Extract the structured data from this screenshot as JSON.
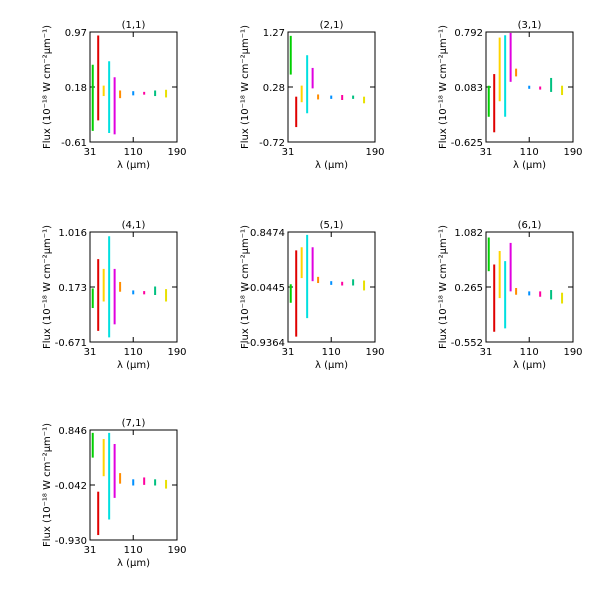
{
  "chart_data": [
    {
      "type": "line",
      "title": "(1,1)",
      "xlabel": "λ (μm)",
      "ylabel": "Flux (10⁻¹⁸ W cm⁻²μm⁻¹)",
      "xlim": [
        31,
        190
      ],
      "ylim": [
        -0.61,
        0.97
      ],
      "xticks": [
        "31",
        "110",
        "190"
      ],
      "yticks": [
        "-0.61",
        "0.18",
        "0.97"
      ],
      "series": [
        {
          "color": "#00d000",
          "segments": [
            {
              "x": 36,
              "y": [
                -0.45,
                0.5
              ]
            }
          ]
        },
        {
          "color": "#e00000",
          "segments": [
            {
              "x": 46,
              "y": [
                -0.3,
                0.92
              ]
            }
          ]
        },
        {
          "color": "#ffd400",
          "segments": [
            {
              "x": 56,
              "y": [
                0.05,
                0.2
              ]
            }
          ]
        },
        {
          "color": "#00e0e0",
          "segments": [
            {
              "x": 66,
              "y": [
                -0.48,
                0.55
              ]
            }
          ]
        },
        {
          "color": "#e000e0",
          "segments": [
            {
              "x": 76,
              "y": [
                -0.5,
                0.32
              ]
            }
          ]
        },
        {
          "color": "#ff8c00",
          "segments": [
            {
              "x": 86,
              "y": [
                0.02,
                0.13
              ]
            }
          ]
        },
        {
          "color": "#0090ff",
          "segments": [
            {
              "x": 110,
              "y": [
                0.06,
                0.12
              ]
            }
          ]
        },
        {
          "color": "#ff00a0",
          "segments": [
            {
              "x": 130,
              "y": [
                0.07,
                0.11
              ]
            }
          ]
        },
        {
          "color": "#00c080",
          "segments": [
            {
              "x": 150,
              "y": [
                0.05,
                0.13
              ]
            }
          ]
        },
        {
          "color": "#e8e000",
          "segments": [
            {
              "x": 170,
              "y": [
                0.03,
                0.14
              ]
            }
          ]
        }
      ]
    },
    {
      "type": "line",
      "title": "(2,1)",
      "xlabel": "λ (μm)",
      "ylabel": "Flux (10⁻¹⁸ W cm⁻²μm⁻¹)",
      "xlim": [
        31,
        190
      ],
      "ylim": [
        -0.72,
        1.27
      ],
      "xticks": [
        "31",
        "190"
      ],
      "yticks": [
        "-0.72",
        "0.28",
        "1.27"
      ],
      "series": [
        {
          "color": "#00d000",
          "segments": [
            {
              "x": 36,
              "y": [
                0.5,
                1.2
              ]
            }
          ]
        },
        {
          "color": "#e00000",
          "segments": [
            {
              "x": 46,
              "y": [
                -0.45,
                0.1
              ]
            }
          ]
        },
        {
          "color": "#ffd400",
          "segments": [
            {
              "x": 56,
              "y": [
                0.0,
                0.3
              ]
            }
          ]
        },
        {
          "color": "#00e0e0",
          "segments": [
            {
              "x": 66,
              "y": [
                -0.2,
                0.85
              ]
            }
          ]
        },
        {
          "color": "#e000e0",
          "segments": [
            {
              "x": 76,
              "y": [
                0.25,
                0.62
              ]
            }
          ]
        },
        {
          "color": "#ff8c00",
          "segments": [
            {
              "x": 86,
              "y": [
                0.05,
                0.14
              ]
            }
          ]
        },
        {
          "color": "#0090ff",
          "segments": [
            {
              "x": 110,
              "y": [
                0.06,
                0.12
              ]
            }
          ]
        },
        {
          "color": "#ff00a0",
          "segments": [
            {
              "x": 130,
              "y": [
                0.04,
                0.13
              ]
            }
          ]
        },
        {
          "color": "#00c080",
          "segments": [
            {
              "x": 150,
              "y": [
                0.06,
                0.12
              ]
            }
          ]
        },
        {
          "color": "#e8e000",
          "segments": [
            {
              "x": 170,
              "y": [
                -0.02,
                0.1
              ]
            }
          ]
        }
      ]
    },
    {
      "type": "line",
      "title": "(3,1)",
      "xlabel": "λ (μm)",
      "ylabel": "Flux (10⁻¹⁸ W cm⁻²μm⁻¹)",
      "xlim": [
        31,
        190
      ],
      "ylim": [
        -0.625,
        0.792
      ],
      "xticks": [
        "31",
        "110",
        "190"
      ],
      "yticks": [
        "-0.625",
        "0.083",
        "0.792"
      ],
      "series": [
        {
          "color": "#00d000",
          "segments": [
            {
              "x": 36,
              "y": [
                -0.3,
                0.1
              ]
            }
          ]
        },
        {
          "color": "#e00000",
          "segments": [
            {
              "x": 46,
              "y": [
                -0.5,
                0.25
              ]
            }
          ]
        },
        {
          "color": "#ffd400",
          "segments": [
            {
              "x": 56,
              "y": [
                -0.1,
                0.72
              ]
            }
          ]
        },
        {
          "color": "#00e0e0",
          "segments": [
            {
              "x": 66,
              "y": [
                -0.3,
                0.75
              ]
            }
          ]
        },
        {
          "color": "#e000e0",
          "segments": [
            {
              "x": 76,
              "y": [
                0.15,
                0.78
              ]
            }
          ]
        },
        {
          "color": "#ff8c00",
          "segments": [
            {
              "x": 86,
              "y": [
                0.22,
                0.32
              ]
            }
          ]
        },
        {
          "color": "#0090ff",
          "segments": [
            {
              "x": 110,
              "y": [
                0.06,
                0.1
              ]
            }
          ]
        },
        {
          "color": "#ff00a0",
          "segments": [
            {
              "x": 130,
              "y": [
                0.05,
                0.09
              ]
            }
          ]
        },
        {
          "color": "#00c080",
          "segments": [
            {
              "x": 150,
              "y": [
                0.02,
                0.2
              ]
            }
          ]
        },
        {
          "color": "#e8e000",
          "segments": [
            {
              "x": 170,
              "y": [
                -0.02,
                0.1
              ]
            }
          ]
        }
      ]
    },
    {
      "type": "line",
      "title": "(4,1)",
      "xlabel": "λ (μm)",
      "ylabel": "Flux (10⁻¹⁸ W cm⁻²μm⁻¹)",
      "xlim": [
        31,
        190
      ],
      "ylim": [
        -0.671,
        1.016
      ],
      "xticks": [
        "31",
        "110",
        "190"
      ],
      "yticks": [
        "-0.671",
        "0.173",
        "1.016"
      ],
      "series": [
        {
          "color": "#00d000",
          "segments": [
            {
              "x": 36,
              "y": [
                -0.15,
                0.15
              ]
            }
          ]
        },
        {
          "color": "#e00000",
          "segments": [
            {
              "x": 46,
              "y": [
                -0.5,
                0.6
              ]
            }
          ]
        },
        {
          "color": "#ffd400",
          "segments": [
            {
              "x": 56,
              "y": [
                -0.05,
                0.45
              ]
            }
          ]
        },
        {
          "color": "#00e0e0",
          "segments": [
            {
              "x": 66,
              "y": [
                -0.6,
                0.95
              ]
            }
          ]
        },
        {
          "color": "#e000e0",
          "segments": [
            {
              "x": 76,
              "y": [
                -0.4,
                0.45
              ]
            }
          ]
        },
        {
          "color": "#ff8c00",
          "segments": [
            {
              "x": 86,
              "y": [
                0.1,
                0.25
              ]
            }
          ]
        },
        {
          "color": "#0090ff",
          "segments": [
            {
              "x": 110,
              "y": [
                0.06,
                0.12
              ]
            }
          ]
        },
        {
          "color": "#ff00a0",
          "segments": [
            {
              "x": 130,
              "y": [
                0.06,
                0.11
              ]
            }
          ]
        },
        {
          "color": "#00c080",
          "segments": [
            {
              "x": 150,
              "y": [
                0.05,
                0.18
              ]
            }
          ]
        },
        {
          "color": "#e8e000",
          "segments": [
            {
              "x": 170,
              "y": [
                -0.05,
                0.14
              ]
            }
          ]
        }
      ]
    },
    {
      "type": "line",
      "title": "(5,1)",
      "xlabel": "λ (μm)",
      "ylabel": "Flux (10⁻¹⁸ W cm⁻²μm⁻¹)",
      "xlim": [
        31,
        190
      ],
      "ylim": [
        -0.9364,
        0.8474
      ],
      "xticks": [
        "31",
        "110",
        "190"
      ],
      "yticks": [
        "-0.9364",
        "-0.0445",
        "0.8474"
      ],
      "series": [
        {
          "color": "#00d000",
          "segments": [
            {
              "x": 36,
              "y": [
                -0.3,
                0.0
              ]
            }
          ]
        },
        {
          "color": "#e00000",
          "segments": [
            {
              "x": 46,
              "y": [
                -0.85,
                0.55
              ]
            }
          ]
        },
        {
          "color": "#ffd400",
          "segments": [
            {
              "x": 56,
              "y": [
                0.1,
                0.6
              ]
            }
          ]
        },
        {
          "color": "#00e0e0",
          "segments": [
            {
              "x": 66,
              "y": [
                -0.55,
                0.8
              ]
            }
          ]
        },
        {
          "color": "#e000e0",
          "segments": [
            {
              "x": 76,
              "y": [
                0.05,
                0.6
              ]
            }
          ]
        },
        {
          "color": "#ff8c00",
          "segments": [
            {
              "x": 86,
              "y": [
                0.02,
                0.12
              ]
            }
          ]
        },
        {
          "color": "#0090ff",
          "segments": [
            {
              "x": 110,
              "y": [
                -0.01,
                0.05
              ]
            }
          ]
        },
        {
          "color": "#ff00a0",
          "segments": [
            {
              "x": 130,
              "y": [
                -0.02,
                0.04
              ]
            }
          ]
        },
        {
          "color": "#00c080",
          "segments": [
            {
              "x": 150,
              "y": [
                -0.02,
                0.08
              ]
            }
          ]
        },
        {
          "color": "#e8e000",
          "segments": [
            {
              "x": 170,
              "y": [
                -0.1,
                0.06
              ]
            }
          ]
        }
      ]
    },
    {
      "type": "line",
      "title": "(6,1)",
      "xlabel": "λ (μm)",
      "ylabel": "Flux (10⁻¹⁸ W cm⁻²μm⁻¹)",
      "xlim": [
        31,
        190
      ],
      "ylim": [
        -0.552,
        1.082
      ],
      "xticks": [
        "31",
        "110",
        "190"
      ],
      "yticks": [
        "-0.552",
        "0.265",
        "1.082"
      ],
      "series": [
        {
          "color": "#00d000",
          "segments": [
            {
              "x": 36,
              "y": [
                0.5,
                1.0
              ]
            }
          ]
        },
        {
          "color": "#e00000",
          "segments": [
            {
              "x": 46,
              "y": [
                -0.4,
                0.6
              ]
            }
          ]
        },
        {
          "color": "#ffd400",
          "segments": [
            {
              "x": 56,
              "y": [
                0.1,
                0.8
              ]
            }
          ]
        },
        {
          "color": "#00e0e0",
          "segments": [
            {
              "x": 66,
              "y": [
                -0.35,
                0.65
              ]
            }
          ]
        },
        {
          "color": "#e000e0",
          "segments": [
            {
              "x": 76,
              "y": [
                0.2,
                0.92
              ]
            }
          ]
        },
        {
          "color": "#ff8c00",
          "segments": [
            {
              "x": 86,
              "y": [
                0.15,
                0.25
              ]
            }
          ]
        },
        {
          "color": "#0090ff",
          "segments": [
            {
              "x": 110,
              "y": [
                0.14,
                0.2
              ]
            }
          ]
        },
        {
          "color": "#ff00a0",
          "segments": [
            {
              "x": 130,
              "y": [
                0.12,
                0.2
              ]
            }
          ]
        },
        {
          "color": "#00c080",
          "segments": [
            {
              "x": 150,
              "y": [
                0.08,
                0.22
              ]
            }
          ]
        },
        {
          "color": "#e8e000",
          "segments": [
            {
              "x": 170,
              "y": [
                0.02,
                0.18
              ]
            }
          ]
        }
      ]
    },
    {
      "type": "line",
      "title": "(7,1)",
      "xlabel": "λ (μm)",
      "ylabel": "Flux (10⁻¹⁸ W cm⁻²μm⁻¹)",
      "xlim": [
        31,
        190
      ],
      "ylim": [
        -0.93,
        0.846
      ],
      "xticks": [
        "31",
        "110",
        "190"
      ],
      "yticks": [
        "-0.930",
        "-0.042",
        "0.846"
      ],
      "series": [
        {
          "color": "#00d000",
          "segments": [
            {
              "x": 36,
              "y": [
                0.4,
                0.8
              ]
            }
          ]
        },
        {
          "color": "#e00000",
          "segments": [
            {
              "x": 46,
              "y": [
                -0.85,
                -0.15
              ]
            }
          ]
        },
        {
          "color": "#ffd400",
          "segments": [
            {
              "x": 56,
              "y": [
                0.1,
                0.7
              ]
            }
          ]
        },
        {
          "color": "#00e0e0",
          "segments": [
            {
              "x": 66,
              "y": [
                -0.6,
                0.8
              ]
            }
          ]
        },
        {
          "color": "#e000e0",
          "segments": [
            {
              "x": 76,
              "y": [
                -0.25,
                0.62
              ]
            }
          ]
        },
        {
          "color": "#ff8c00",
          "segments": [
            {
              "x": 86,
              "y": [
                -0.02,
                0.15
              ]
            }
          ]
        },
        {
          "color": "#0090ff",
          "segments": [
            {
              "x": 110,
              "y": [
                -0.05,
                0.05
              ]
            }
          ]
        },
        {
          "color": "#ff00a0",
          "segments": [
            {
              "x": 130,
              "y": [
                -0.04,
                0.08
              ]
            }
          ]
        },
        {
          "color": "#00c080",
          "segments": [
            {
              "x": 150,
              "y": [
                -0.05,
                0.05
              ]
            }
          ]
        },
        {
          "color": "#e8e000",
          "segments": [
            {
              "x": 170,
              "y": [
                -0.1,
                0.04
              ]
            }
          ]
        }
      ]
    }
  ]
}
